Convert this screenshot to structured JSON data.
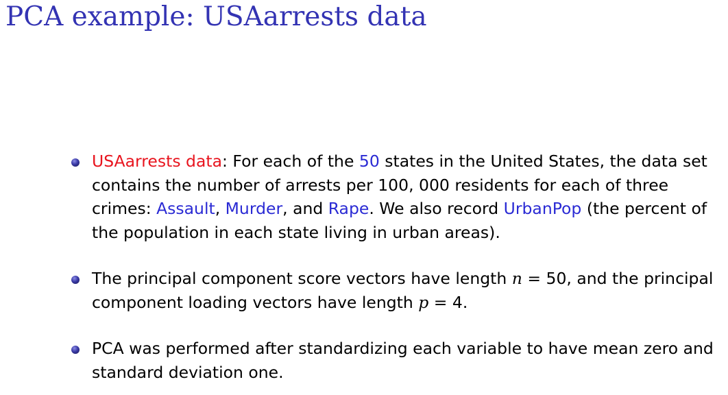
{
  "title": "PCA example: USAarrests data",
  "bullets": [
    {
      "term": "USAarrests data",
      "sep1": ": For each of the ",
      "n_states": "50",
      "text1": " states in the United States, the data set contains the number of arrests per 100, 000 residents for each of three crimes: ",
      "crime1": "Assault",
      "sep2": ", ",
      "crime2": "Murder",
      "sep3": ", and ",
      "crime3": "Rape",
      "text2": ". We also record ",
      "extra_var": "UrbanPop",
      "text3": " (the percent of the population in each state living in urban areas)."
    },
    {
      "text1": "The principal component score vectors have length ",
      "n_symbol": "n",
      "n_value": " = 50",
      "text2": ", and the principal component loading vectors have length ",
      "p_symbol": "p",
      "p_value": " = 4",
      "text3": "."
    },
    {
      "text": "PCA was performed after standardizing each variable to have mean zero and standard deviation one."
    }
  ],
  "colors": {
    "title": "#3333b3",
    "highlight_red": "#e8141e",
    "highlight_blue": "#2a2ad4",
    "text": "#000000"
  }
}
